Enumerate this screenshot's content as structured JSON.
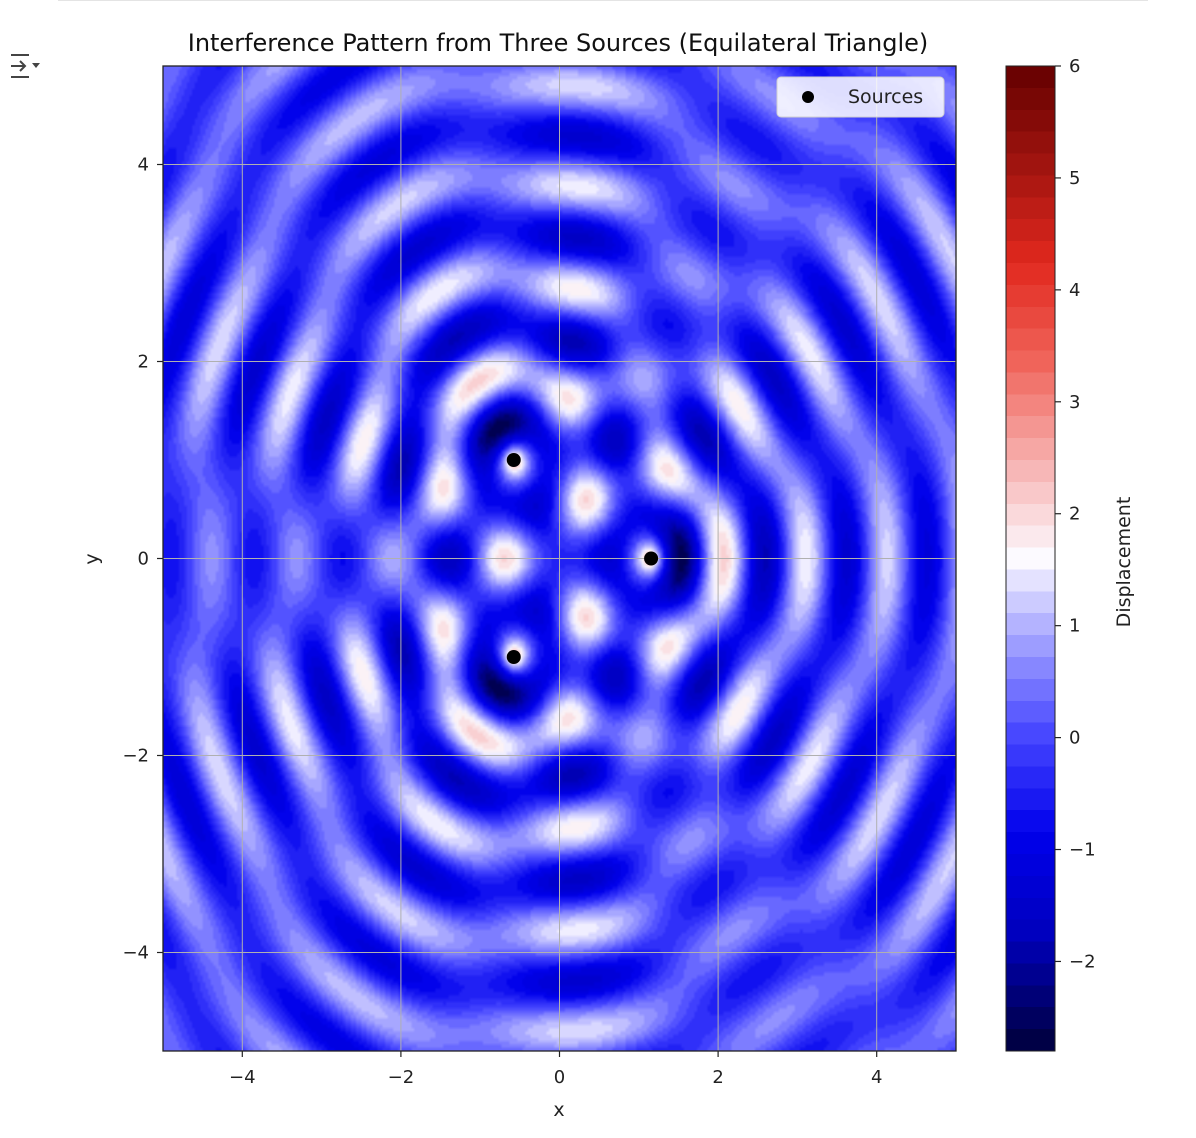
{
  "toolbar": {
    "output_toggle_icon": "output-collapse-icon"
  },
  "chart_data": {
    "type": "heatmap",
    "title": "Interference Pattern from Three Sources (Equilateral Triangle)",
    "xlabel": "x",
    "ylabel": "y",
    "xlim": [
      -5,
      5
    ],
    "ylim": [
      -5,
      5
    ],
    "x_ticks": [
      -4,
      -2,
      0,
      2,
      4
    ],
    "y_ticks": [
      -4,
      -2,
      0,
      2,
      4
    ],
    "x_tick_labels": [
      "−4",
      "−2",
      "0",
      "2",
      "4"
    ],
    "y_tick_labels": [
      "−4",
      "−2",
      "0",
      "2",
      "4"
    ],
    "grid": true,
    "colormap": "seismic",
    "colorbar": {
      "label": "Displacement",
      "range": [
        -2.8,
        6.0
      ],
      "ticks": [
        -2,
        -1,
        0,
        1,
        2,
        3,
        4,
        5,
        6
      ],
      "tick_labels": [
        "−2",
        "−1",
        "0",
        "1",
        "2",
        "3",
        "4",
        "5",
        "6"
      ]
    },
    "sources": {
      "name": "Sources",
      "color": "#000000",
      "points": [
        {
          "x": 1.155,
          "y": 0
        },
        {
          "x": -0.577,
          "y": 1.0
        },
        {
          "x": -0.577,
          "y": -1.0
        }
      ]
    },
    "legend": {
      "placement": "upper right",
      "entries": [
        "Sources"
      ]
    }
  }
}
